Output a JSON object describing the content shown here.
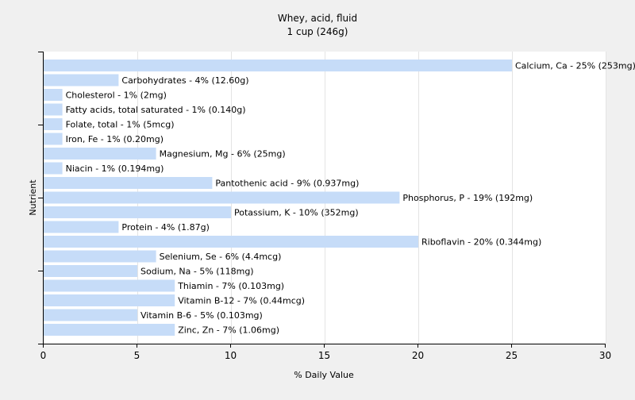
{
  "colors": {
    "background": "#f0f0f0",
    "plot_background": "#ffffff",
    "bar": "#c6dcf8",
    "gridline": "#e4e4e4",
    "axis": "#000000"
  },
  "chart_data": {
    "type": "bar",
    "orientation": "horizontal",
    "title": "Whey, acid, fluid",
    "subtitle": "1 cup (246g)",
    "xlabel": "% Daily Value",
    "ylabel": "Nutrient",
    "xlim": [
      0,
      30
    ],
    "xticks": [
      0,
      5,
      10,
      15,
      20,
      25,
      30
    ],
    "grid": true,
    "categories": [
      "Calcium, Ca",
      "Carbohydrates",
      "Cholesterol",
      "Fatty acids, total saturated",
      "Folate, total",
      "Iron, Fe",
      "Magnesium, Mg",
      "Niacin",
      "Pantothenic acid",
      "Phosphorus, P",
      "Potassium, K",
      "Protein",
      "Riboflavin",
      "Selenium, Se",
      "Sodium, Na",
      "Thiamin",
      "Vitamin B-12",
      "Vitamin B-6",
      "Zinc, Zn"
    ],
    "values": [
      25,
      4,
      1,
      1,
      1,
      1,
      6,
      1,
      9,
      19,
      10,
      4,
      20,
      6,
      5,
      7,
      7,
      5,
      7
    ],
    "labels": [
      "Calcium, Ca - 25% (253mg)",
      "Carbohydrates - 4% (12.60g)",
      "Cholesterol - 1% (2mg)",
      "Fatty acids, total saturated - 1% (0.140g)",
      "Folate, total - 1% (5mcg)",
      "Iron, Fe - 1% (0.20mg)",
      "Magnesium, Mg - 6% (25mg)",
      "Niacin - 1% (0.194mg)",
      "Pantothenic acid - 9% (0.937mg)",
      "Phosphorus, P - 19% (192mg)",
      "Potassium, K - 10% (352mg)",
      "Protein - 4% (1.87g)",
      "Riboflavin - 20% (0.344mg)",
      "Selenium, Se - 6% (4.4mcg)",
      "Sodium, Na - 5% (118mg)",
      "Thiamin - 7% (0.103mg)",
      "Vitamin B-12 - 7% (0.44mcg)",
      "Vitamin B-6 - 5% (0.103mg)",
      "Zinc, Zn - 7% (1.06mg)"
    ]
  }
}
